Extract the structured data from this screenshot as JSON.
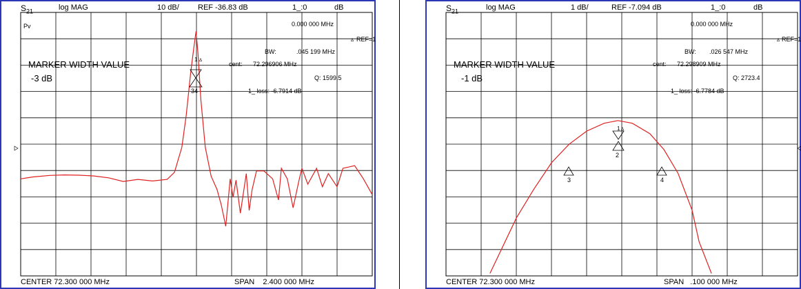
{
  "panels": [
    {
      "s21": "S",
      "s21_sub": "21",
      "format": "log MAG",
      "scale": "10 dB/",
      "ref": "REF -36.83 dB",
      "channel": "1_:0",
      "unit": "dB",
      "icon": "Pv",
      "center": "CENTER  72.300 000 MHz",
      "span": "SPAN    2.400 000 MHz",
      "marker_freq": "0.000 000 MHz",
      "ref_marker": "REF=1",
      "bw_label": "BW:",
      "bw_value": ".045 199 MHz",
      "cent_label": "cent:",
      "cent_value": "72.296906 MHz",
      "q": "Q: 1599.5",
      "loss": "1_ loss: -6.7914 dB",
      "mw_title": "MARKER WIDTH VALUE",
      "mw_value": "-3 dB"
    },
    {
      "s21": "S",
      "s21_sub": "21",
      "format": "log MAG",
      "scale": "1 dB/",
      "ref": "REF -7.094 dB",
      "channel": "1_:0",
      "unit": "dB",
      "center": "CENTER  72.300 000 MHz",
      "span": "SPAN   .100 000 MHz",
      "marker_freq": "0.000 000 MHz",
      "ref_marker": "REF=1",
      "bw_label": "BW:",
      "bw_value": ".026 547 MHz",
      "cent_label": "cent:",
      "cent_value": "72.298909 MHz",
      "q": "Q: 2723.4",
      "loss": "1_ loss: -6.7784 dB",
      "mw_title": "MARKER WIDTH VALUE",
      "mw_value": "-1 dB"
    }
  ],
  "markers": {
    "left": [
      "1",
      "34"
    ],
    "right": [
      "1",
      "2",
      "3",
      "4"
    ]
  },
  "chart_data": [
    {
      "type": "line",
      "title": "S21 log MAG 10 dB/ REF -36.83 dB",
      "xlabel": "CENTER 72.300 000 MHz",
      "ylabel": "log MAG (dB)",
      "xlim": [
        71.1,
        73.5
      ],
      "ylim": [
        -136.83,
        -36.83
      ],
      "grid": true,
      "trace_color": "#e02020",
      "series": [
        {
          "x": [
            71.1,
            71.18,
            71.3,
            71.4,
            71.5,
            71.6,
            71.7,
            71.8,
            71.9,
            72.0,
            72.1,
            72.15,
            72.2,
            72.23,
            72.26,
            72.28,
            72.297,
            72.31,
            72.33,
            72.36,
            72.4,
            72.44,
            72.47,
            72.5,
            72.53,
            72.55,
            72.57,
            72.6,
            72.64,
            72.66,
            72.68,
            72.71,
            72.76,
            72.82,
            72.86,
            72.88,
            72.92,
            72.96,
            73.0,
            73.02,
            73.06,
            73.12,
            73.16,
            73.2,
            73.26,
            73.3,
            73.38,
            73.44,
            73.5
          ],
          "y": [
            -100.0,
            -99.3,
            -98.7,
            -98.5,
            -98.6,
            -98.9,
            -99.6,
            -101.0,
            -100.2,
            -100.8,
            -100.2,
            -97.5,
            -88.0,
            -76.0,
            -60.0,
            -51.0,
            -44.0,
            -52.0,
            -70.0,
            -88.0,
            -99.0,
            -104.0,
            -110.0,
            -118.0,
            -100.0,
            -107.0,
            -100.5,
            -113.0,
            -98.0,
            -112.0,
            -104.0,
            -97.0,
            -97.0,
            -100.0,
            -108.0,
            -96.0,
            -100.0,
            -111.0,
            -100.5,
            -96.0,
            -102.0,
            -96.0,
            -103.0,
            -98.0,
            -103.0,
            -96.0,
            -95.0,
            -100.0,
            -106.0
          ]
        }
      ],
      "markers": [
        {
          "label": "1",
          "x": 72.296906,
          "y": -43.8
        },
        {
          "label": "3",
          "x": 72.2743,
          "y": -46.8
        },
        {
          "label": "4",
          "x": 72.3195,
          "y": -46.8
        }
      ]
    },
    {
      "type": "line",
      "title": "S21 log MAG 1 dB/ REF -7.094 dB",
      "xlabel": "CENTER 72.300 000 MHz",
      "ylabel": "log MAG (dB)",
      "xlim": [
        72.25,
        72.35
      ],
      "ylim": [
        -17.094,
        -7.094
      ],
      "grid": true,
      "trace_color": "#e02020",
      "series": [
        {
          "x": [
            72.2625,
            72.265,
            72.27,
            72.275,
            72.28,
            72.285,
            72.29,
            72.295,
            72.2989,
            72.303,
            72.308,
            72.312,
            72.316,
            72.32,
            72.322,
            72.3255
          ],
          "y": [
            -17.0,
            -16.3,
            -14.9,
            -13.8,
            -12.8,
            -12.1,
            -11.6,
            -11.3,
            -11.2,
            -11.3,
            -11.7,
            -12.3,
            -13.2,
            -14.6,
            -15.8,
            -17.0
          ]
        }
      ],
      "markers": [
        {
          "label": "1",
          "x": 72.2989,
          "y": -10.9
        },
        {
          "label": "2",
          "x": 72.2989,
          "y": -11.3
        },
        {
          "label": "3",
          "x": 72.2856,
          "y": -12.2
        },
        {
          "label": "4",
          "x": 72.3121,
          "y": -12.2
        }
      ]
    }
  ]
}
